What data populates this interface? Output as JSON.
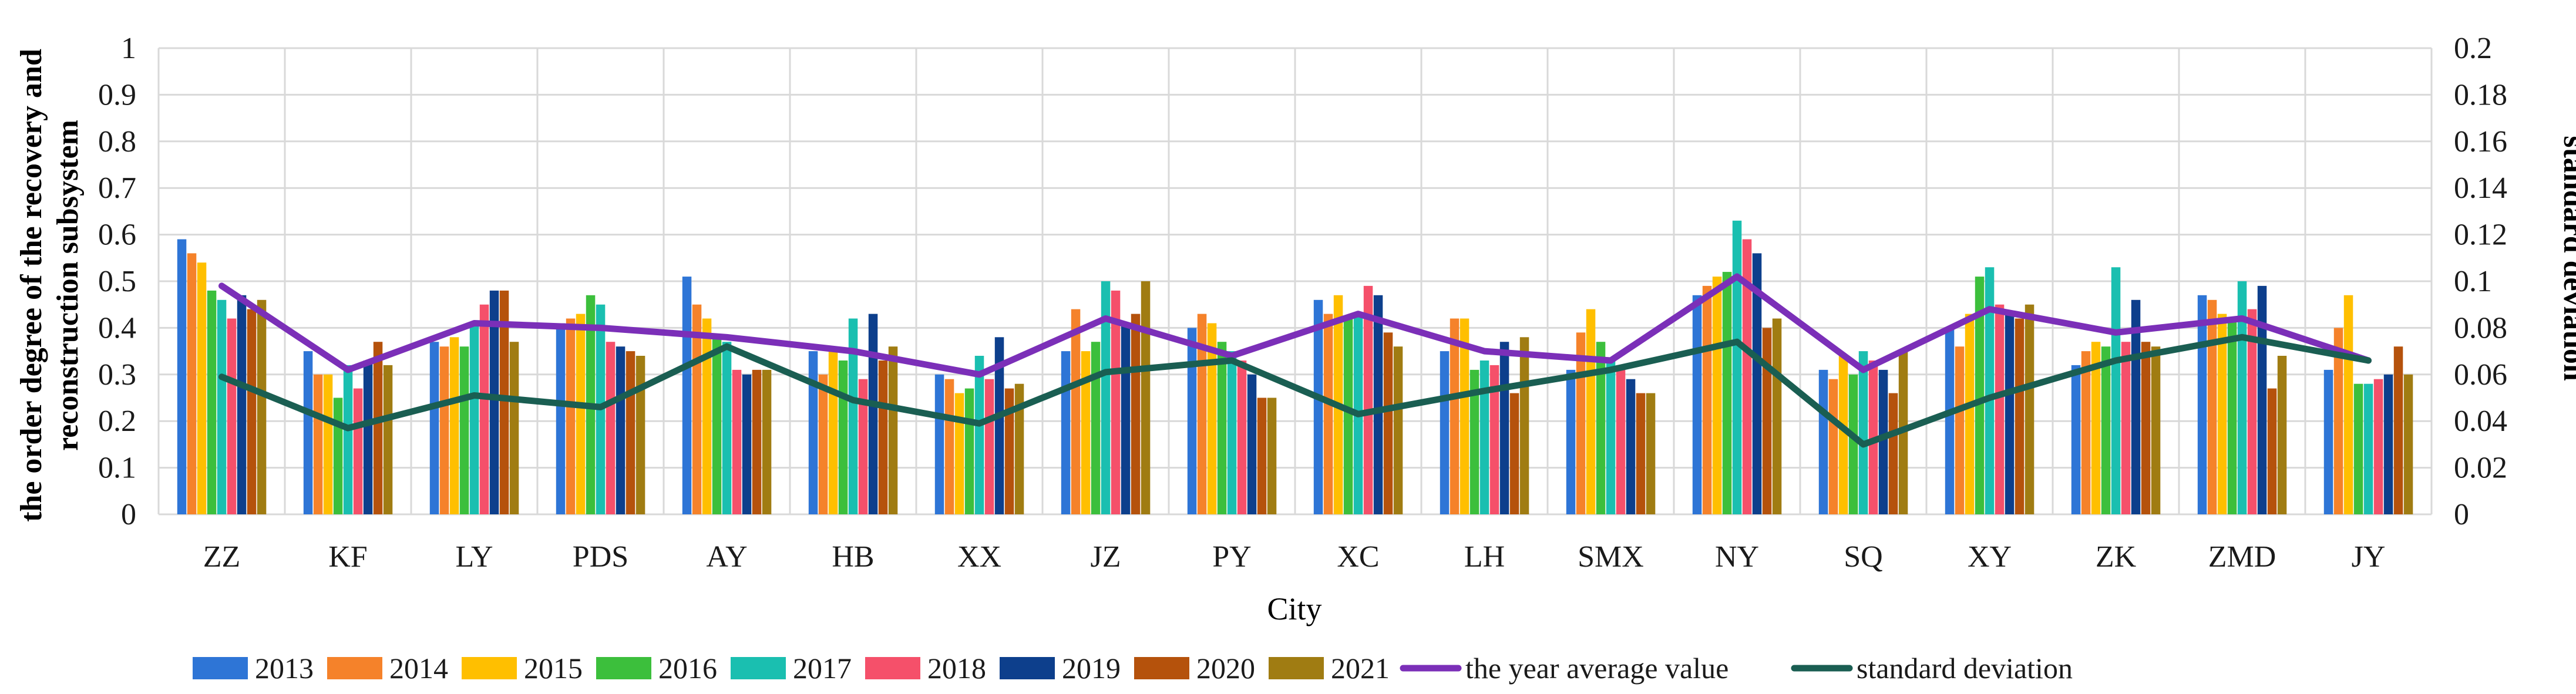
{
  "chart_data": {
    "type": "bar",
    "title": "",
    "xlabel": "City",
    "ylabel": "the order degree of the recovery and reconstruction subsystem",
    "ylabel_lines": [
      "the order degree of the recovery and",
      "reconstruction subsystem"
    ],
    "y2label": "standard deviation",
    "ylim": [
      0,
      1
    ],
    "y2lim": [
      0,
      0.2
    ],
    "yticks": [
      "0",
      "0.1",
      "0.2",
      "0.3",
      "0.4",
      "0.5",
      "0.6",
      "0.7",
      "0.8",
      "0.9",
      "1"
    ],
    "y2ticks": [
      "0",
      "0.02",
      "0.04",
      "0.06",
      "0.08",
      "0.1",
      "0.12",
      "0.14",
      "0.16",
      "0.18",
      "0.2"
    ],
    "grid": true,
    "legend_position": "bottom",
    "categories": [
      "ZZ",
      "KF",
      "LY",
      "PDS",
      "AY",
      "HB",
      "XX",
      "JZ",
      "PY",
      "XC",
      "LH",
      "SMX",
      "NY",
      "SQ",
      "XY",
      "ZK",
      "ZMD",
      "JY"
    ],
    "series": [
      {
        "name": "2013",
        "color": "#2E75D6",
        "values": [
          0.59,
          0.35,
          0.37,
          0.41,
          0.51,
          0.35,
          0.3,
          0.35,
          0.4,
          0.46,
          0.35,
          0.31,
          0.47,
          0.31,
          0.4,
          0.32,
          0.47,
          0.31
        ]
      },
      {
        "name": "2014",
        "color": "#F5822A",
        "values": [
          0.56,
          0.3,
          0.36,
          0.42,
          0.45,
          0.3,
          0.29,
          0.44,
          0.43,
          0.43,
          0.42,
          0.39,
          0.49,
          0.29,
          0.36,
          0.35,
          0.46,
          0.4
        ]
      },
      {
        "name": "2015",
        "color": "#FFBF00",
        "values": [
          0.54,
          0.3,
          0.38,
          0.43,
          0.42,
          0.35,
          0.26,
          0.35,
          0.41,
          0.47,
          0.42,
          0.44,
          0.51,
          0.34,
          0.43,
          0.37,
          0.43,
          0.47
        ]
      },
      {
        "name": "2016",
        "color": "#3CBF3C",
        "values": [
          0.48,
          0.25,
          0.36,
          0.47,
          0.38,
          0.33,
          0.27,
          0.37,
          0.37,
          0.42,
          0.31,
          0.37,
          0.52,
          0.3,
          0.51,
          0.36,
          0.42,
          0.28
        ]
      },
      {
        "name": "2017",
        "color": "#1ABFB0",
        "values": [
          0.46,
          0.32,
          0.41,
          0.45,
          0.37,
          0.42,
          0.34,
          0.5,
          0.35,
          0.43,
          0.33,
          0.33,
          0.63,
          0.35,
          0.53,
          0.53,
          0.5,
          0.28
        ]
      },
      {
        "name": "2018",
        "color": "#F5506A",
        "values": [
          0.42,
          0.27,
          0.45,
          0.37,
          0.31,
          0.29,
          0.29,
          0.48,
          0.33,
          0.49,
          0.32,
          0.32,
          0.59,
          0.33,
          0.45,
          0.37,
          0.44,
          0.29
        ]
      },
      {
        "name": "2019",
        "color": "#0D3F8C",
        "values": [
          0.47,
          0.33,
          0.48,
          0.36,
          0.3,
          0.43,
          0.38,
          0.41,
          0.3,
          0.47,
          0.37,
          0.29,
          0.56,
          0.31,
          0.43,
          0.46,
          0.49,
          0.3
        ]
      },
      {
        "name": "2020",
        "color": "#B5520C",
        "values": [
          0.44,
          0.37,
          0.48,
          0.35,
          0.31,
          0.33,
          0.27,
          0.43,
          0.25,
          0.39,
          0.26,
          0.26,
          0.4,
          0.26,
          0.42,
          0.37,
          0.27,
          0.36
        ]
      },
      {
        "name": "2021",
        "color": "#A07C12",
        "values": [
          0.46,
          0.32,
          0.37,
          0.34,
          0.31,
          0.36,
          0.28,
          0.5,
          0.25,
          0.36,
          0.38,
          0.26,
          0.42,
          0.35,
          0.45,
          0.36,
          0.34,
          0.3
        ]
      }
    ],
    "lines": [
      {
        "name": "the year average value",
        "axis": "left",
        "color": "#7B2FB8",
        "values": [
          0.49,
          0.31,
          0.41,
          0.4,
          0.38,
          0.35,
          0.3,
          0.42,
          0.34,
          0.43,
          0.35,
          0.33,
          0.51,
          0.31,
          0.44,
          0.39,
          0.42,
          0.33
        ]
      },
      {
        "name": "standard deviation",
        "axis": "right",
        "color": "#1A5E52",
        "values": [
          0.059,
          0.037,
          0.051,
          0.046,
          0.072,
          0.049,
          0.039,
          0.061,
          0.066,
          0.043,
          0.053,
          0.062,
          0.074,
          0.03,
          0.05,
          0.066,
          0.076,
          0.066
        ]
      }
    ]
  }
}
